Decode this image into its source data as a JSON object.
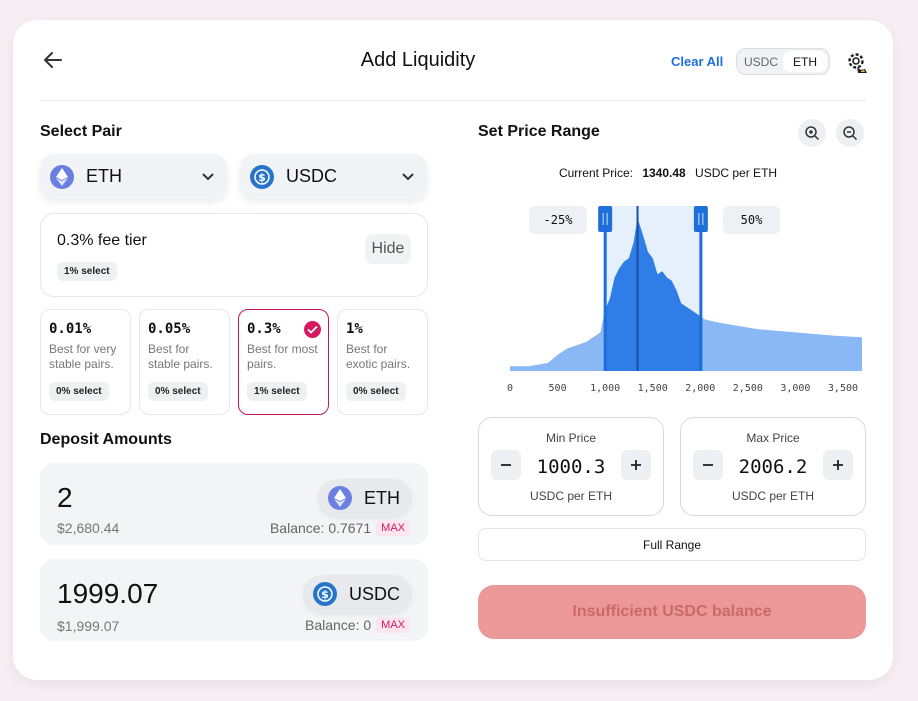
{
  "header": {
    "title": "Add Liquidity",
    "clear_all": "Clear All",
    "toggle": [
      "USDC",
      "ETH"
    ],
    "toggle_selected": "ETH"
  },
  "select_pair": {
    "heading": "Select Pair",
    "token_a": "ETH",
    "token_b": "USDC",
    "fee_tier": "0.3% fee tier",
    "fee_tier_badge": "1% select",
    "hide_label": "Hide",
    "tiers": [
      {
        "pct": "0.01%",
        "desc": "Best for very stable pairs.",
        "badge": "0% select",
        "selected": false
      },
      {
        "pct": "0.05%",
        "desc": "Best for stable pairs.",
        "badge": "0% select",
        "selected": false
      },
      {
        "pct": "0.3%",
        "desc": "Best for most pairs.",
        "badge": "1% select",
        "selected": true
      },
      {
        "pct": "1%",
        "desc": "Best for exotic pairs.",
        "badge": "0% select",
        "selected": false
      }
    ]
  },
  "deposit": {
    "heading": "Deposit Amounts",
    "items": [
      {
        "amount": "2",
        "usd": "$2,680.44",
        "token": "ETH",
        "balance": "Balance: 0.7671",
        "max": "MAX"
      },
      {
        "amount": "1999.07",
        "usd": "$1,999.07",
        "token": "USDC",
        "balance": "Balance: 0",
        "max": "MAX"
      }
    ]
  },
  "price_range": {
    "heading": "Set Price Range",
    "current_label": "Current Price:",
    "current_value": "1340.48",
    "current_unit": "USDC per ETH",
    "low_pct": "-25%",
    "high_pct": "50%",
    "min": {
      "label": "Min Price",
      "value": "1000.3",
      "unit": "USDC per ETH"
    },
    "max": {
      "label": "Max Price",
      "value": "2006.2",
      "unit": "USDC per ETH"
    },
    "full_range": "Full Range",
    "submit": "Insufficient USDC balance"
  },
  "chart_data": {
    "type": "area",
    "x_ticks": [
      "0",
      "500",
      "1,000",
      "1,500",
      "2,000",
      "2,500",
      "3,000",
      "3,500"
    ],
    "xlim": [
      0,
      3700
    ],
    "x": [
      0,
      100,
      200,
      300,
      400,
      500,
      600,
      700,
      800,
      900,
      950,
      1000,
      1050,
      1100,
      1150,
      1200,
      1250,
      1300,
      1340,
      1400,
      1450,
      1500,
      1550,
      1600,
      1650,
      1700,
      1750,
      1800,
      1850,
      1900,
      1950,
      2000,
      2050,
      2200,
      2400,
      2600,
      2800,
      3000,
      3200,
      3400,
      3700
    ],
    "y": [
      3,
      3,
      3,
      4,
      5,
      10,
      14,
      16,
      18,
      22,
      24,
      38,
      45,
      58,
      64,
      68,
      70,
      80,
      95,
      84,
      74,
      70,
      60,
      62,
      58,
      56,
      50,
      42,
      40,
      38,
      36,
      34,
      32,
      30,
      28,
      26,
      25,
      24,
      23,
      22,
      21
    ],
    "ylim": [
      0,
      100
    ],
    "current_price": 1340.48,
    "range_min": 1000.3,
    "range_max": 2006.2
  },
  "colors": {
    "accent": "#d6195e",
    "link": "#1d6fd8",
    "chart_in": "#2f7de6",
    "chart_out": "#8ab8f5"
  }
}
